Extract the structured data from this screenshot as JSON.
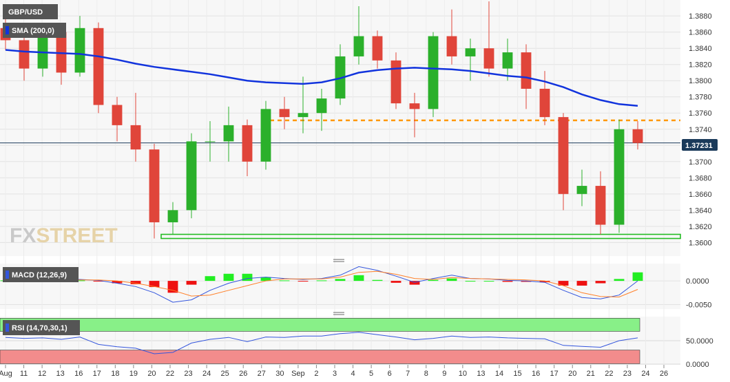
{
  "symbol": "GBP/USD",
  "indicators": {
    "sma": "SMA (200,0)",
    "macd": "MACD (12,26,9)",
    "rsi": "RSI (14,70,30,1)"
  },
  "watermark": {
    "part1": "FX",
    "part2": "STREET"
  },
  "last_price": "1.37231",
  "colors": {
    "up": "#2bb02b",
    "down": "#e0453a",
    "sma": "#1133dd",
    "resistance": "#ff9900",
    "support": "#22bb22",
    "macd_line": "#3355dd",
    "signal_line": "#ff7f27",
    "hist_pos": "#22ee22",
    "hist_neg": "#ee1111",
    "rsi_line": "#3355dd",
    "rsi_overbought": "#88f088",
    "rsi_oversold": "#f28c8c",
    "tag_bg": "#1a3a5a"
  },
  "chart_data": {
    "type": "candlestick",
    "price_axis": {
      "ticks": [
        "1.3880",
        "1.3860",
        "1.3840",
        "1.3820",
        "1.3800",
        "1.3780",
        "1.3760",
        "1.3740",
        "1.3720",
        "1.3700",
        "1.3680",
        "1.3660",
        "1.3640",
        "1.3620",
        "1.3600"
      ],
      "range": [
        1.3585,
        1.3898
      ]
    },
    "macd_axis": {
      "ticks": [
        "0.0000",
        "-0.0050"
      ],
      "range": [
        -0.0058,
        0.0035
      ]
    },
    "rsi_axis": {
      "ticks": [
        "50.0000",
        "0.0000"
      ],
      "range": [
        0,
        100
      ],
      "overbought": 70,
      "oversold": 30
    },
    "x_labels": [
      "Aug",
      "11",
      "12",
      "13",
      "16",
      "17",
      "18",
      "19",
      "20",
      "22",
      "23",
      "24",
      "25",
      "26",
      "27",
      "30",
      "Sep",
      "2",
      "3",
      "4",
      "5",
      "6",
      "7",
      "8",
      "9",
      "10",
      "13",
      "14",
      "15",
      "16",
      "17",
      "20",
      "21",
      "22",
      "23",
      "24",
      "26"
    ],
    "levels": {
      "resistance": 1.3751,
      "support": 1.3605,
      "last": 1.37231
    },
    "candles": [
      {
        "t": "Aug 10",
        "o": 1.3865,
        "h": 1.388,
        "l": 1.3838,
        "c": 1.385
      },
      {
        "t": "Aug 11",
        "o": 1.385,
        "h": 1.3865,
        "l": 1.38,
        "c": 1.3815
      },
      {
        "t": "Aug 12",
        "o": 1.3815,
        "h": 1.387,
        "l": 1.3805,
        "c": 1.386
      },
      {
        "t": "Aug 13",
        "o": 1.386,
        "h": 1.387,
        "l": 1.3795,
        "c": 1.381
      },
      {
        "t": "Aug 16",
        "o": 1.381,
        "h": 1.388,
        "l": 1.3805,
        "c": 1.3865
      },
      {
        "t": "Aug 17",
        "o": 1.3865,
        "h": 1.3872,
        "l": 1.376,
        "c": 1.377
      },
      {
        "t": "Aug 18",
        "o": 1.377,
        "h": 1.378,
        "l": 1.3725,
        "c": 1.3745
      },
      {
        "t": "Aug 19",
        "o": 1.3745,
        "h": 1.3785,
        "l": 1.37,
        "c": 1.3715
      },
      {
        "t": "Aug 20",
        "o": 1.3715,
        "h": 1.3722,
        "l": 1.3605,
        "c": 1.3625
      },
      {
        "t": "Aug 22",
        "o": 1.3625,
        "h": 1.365,
        "l": 1.361,
        "c": 1.364
      },
      {
        "t": "Aug 23",
        "o": 1.364,
        "h": 1.3735,
        "l": 1.363,
        "c": 1.3725
      },
      {
        "t": "Aug 24",
        "o": 1.3725,
        "h": 1.375,
        "l": 1.37,
        "c": 1.3725
      },
      {
        "t": "Aug 25",
        "o": 1.3725,
        "h": 1.3768,
        "l": 1.37,
        "c": 1.3745
      },
      {
        "t": "Aug 26",
        "o": 1.3745,
        "h": 1.3752,
        "l": 1.3682,
        "c": 1.37
      },
      {
        "t": "Aug 27",
        "o": 1.37,
        "h": 1.3775,
        "l": 1.369,
        "c": 1.3765
      },
      {
        "t": "Aug 30",
        "o": 1.3765,
        "h": 1.378,
        "l": 1.374,
        "c": 1.3755
      },
      {
        "t": "Aug 31",
        "o": 1.3755,
        "h": 1.3805,
        "l": 1.3735,
        "c": 1.376
      },
      {
        "t": "Sep 1",
        "o": 1.376,
        "h": 1.379,
        "l": 1.3738,
        "c": 1.3778
      },
      {
        "t": "Sep 2",
        "o": 1.3778,
        "h": 1.3845,
        "l": 1.377,
        "c": 1.383
      },
      {
        "t": "Sep 3",
        "o": 1.383,
        "h": 1.3892,
        "l": 1.382,
        "c": 1.3855
      },
      {
        "t": "Sep 6",
        "o": 1.3855,
        "h": 1.3862,
        "l": 1.3815,
        "c": 1.3825
      },
      {
        "t": "Sep 7",
        "o": 1.3825,
        "h": 1.3835,
        "l": 1.3765,
        "c": 1.3772
      },
      {
        "t": "Sep 8",
        "o": 1.3772,
        "h": 1.3785,
        "l": 1.373,
        "c": 1.3765
      },
      {
        "t": "Sep 9",
        "o": 1.3765,
        "h": 1.386,
        "l": 1.3755,
        "c": 1.3855
      },
      {
        "t": "Sep 10",
        "o": 1.3855,
        "h": 1.3888,
        "l": 1.382,
        "c": 1.383
      },
      {
        "t": "Sep 13",
        "o": 1.383,
        "h": 1.3852,
        "l": 1.38,
        "c": 1.384
      },
      {
        "t": "Sep 14",
        "o": 1.384,
        "h": 1.3898,
        "l": 1.3805,
        "c": 1.3815
      },
      {
        "t": "Sep 15",
        "o": 1.3815,
        "h": 1.3852,
        "l": 1.38,
        "c": 1.3835
      },
      {
        "t": "Sep 16",
        "o": 1.3835,
        "h": 1.3845,
        "l": 1.3765,
        "c": 1.379
      },
      {
        "t": "Sep 17",
        "o": 1.379,
        "h": 1.3812,
        "l": 1.3745,
        "c": 1.3755
      },
      {
        "t": "Sep 20",
        "o": 1.3755,
        "h": 1.376,
        "l": 1.364,
        "c": 1.366
      },
      {
        "t": "Sep 21",
        "o": 1.366,
        "h": 1.369,
        "l": 1.3645,
        "c": 1.367
      },
      {
        "t": "Sep 22",
        "o": 1.367,
        "h": 1.3688,
        "l": 1.361,
        "c": 1.3622
      },
      {
        "t": "Sep 23",
        "o": 1.3622,
        "h": 1.3752,
        "l": 1.3612,
        "c": 1.374
      },
      {
        "t": "Sep 24",
        "o": 1.374,
        "h": 1.375,
        "l": 1.3715,
        "c": 1.3723
      }
    ],
    "sma200": [
      1.3838,
      1.3836,
      1.3835,
      1.3834,
      1.3833,
      1.383,
      1.3826,
      1.3821,
      1.3817,
      1.3814,
      1.3811,
      1.3808,
      1.3804,
      1.38,
      1.3798,
      1.3797,
      1.3796,
      1.3798,
      1.3803,
      1.381,
      1.3813,
      1.3815,
      1.3816,
      1.3815,
      1.3814,
      1.3812,
      1.3809,
      1.3806,
      1.3804,
      1.3799,
      1.3792,
      1.3783,
      1.3776,
      1.3771,
      1.3769
    ],
    "macd": [
      0.0002,
      0.0003,
      0.0003,
      0.0002,
      0.0003,
      0.0001,
      -0.0005,
      -0.0012,
      -0.0025,
      -0.0045,
      -0.004,
      -0.002,
      -0.0005,
      0.0005,
      0.0008,
      0.0005,
      0.0003,
      0.0005,
      0.0012,
      0.003,
      0.0022,
      0.001,
      -0.0003,
      0.0005,
      0.0012,
      0.0005,
      0.0004,
      0.0001,
      0.0,
      -0.0003,
      -0.002,
      -0.0035,
      -0.0038,
      -0.003,
      0.0
    ],
    "signal": [
      0.0001,
      0.0002,
      0.0002,
      0.0002,
      0.0002,
      0.0002,
      0.0,
      -0.0005,
      -0.0012,
      -0.002,
      -0.0032,
      -0.003,
      -0.002,
      -0.001,
      0.0,
      0.0004,
      0.0004,
      0.0004,
      0.0008,
      0.0018,
      0.002,
      0.0014,
      0.0005,
      0.0003,
      0.0007,
      0.0005,
      0.0004,
      0.0003,
      0.0002,
      0.0,
      -0.001,
      -0.0025,
      -0.0033,
      -0.0034,
      -0.0018
    ],
    "histogram": [
      0.0001,
      0.0001,
      0.0001,
      0.0,
      0.0001,
      -0.0001,
      -0.0005,
      -0.0007,
      -0.0013,
      -0.0025,
      -0.0008,
      0.001,
      0.0015,
      0.0015,
      0.0008,
      0.0001,
      -0.0001,
      0.0001,
      0.0004,
      0.0012,
      0.0002,
      -0.0004,
      -0.0008,
      0.0002,
      0.0005,
      0.0,
      0.0,
      -0.0002,
      -0.0002,
      -0.0003,
      -0.001,
      -0.001,
      -0.0005,
      0.0004,
      0.0018
    ],
    "rsi": [
      57,
      55,
      56,
      53,
      58,
      42,
      37,
      34,
      22,
      25,
      45,
      53,
      57,
      48,
      58,
      57,
      60,
      60,
      65,
      68,
      63,
      58,
      52,
      55,
      60,
      57,
      58,
      56,
      55,
      54,
      40,
      38,
      36,
      50,
      56
    ]
  }
}
